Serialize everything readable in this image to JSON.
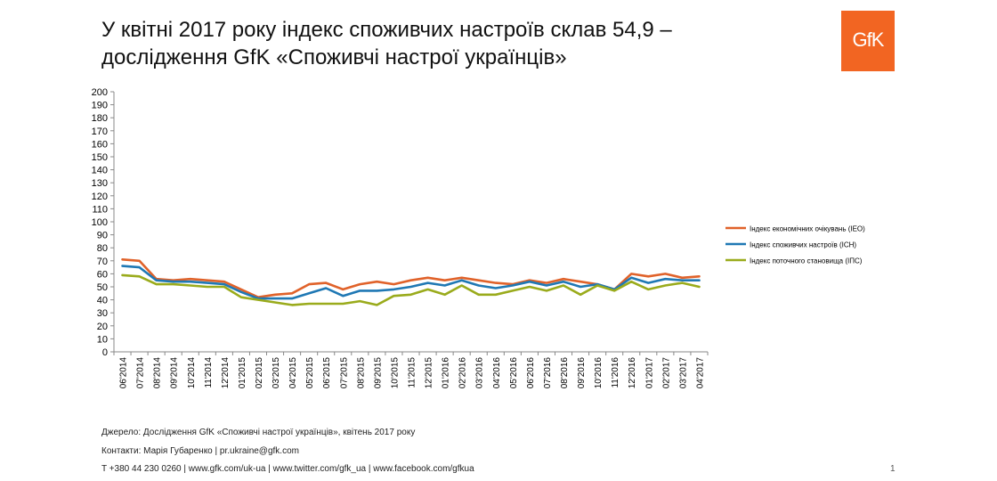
{
  "slide": {
    "title_line1": "У квітні 2017 року індекс споживчих настроїв склав 54,9 –",
    "title_line2": "дослідження GfK «Споживчі настрої українців»",
    "logo_text": "GfK",
    "source": "Джерело: Дослідження GfK «Споживчі настрої українців», квітень 2017 року",
    "contacts": "Контакти: Марія Губаренко | pr.ukraine@gfk.com",
    "links": "T +380 44 230 0260 | www.gfk.com/uk-ua | www.twitter.com/gfk_ua | www.facebook.com/gfkua",
    "page_number": "1"
  },
  "colors": {
    "logo_bg": "#f26522",
    "axis": "#888888",
    "text": "#000000"
  },
  "chart_data": {
    "type": "line",
    "title": "",
    "xlabel": "",
    "ylabel": "",
    "ylim": [
      0,
      200
    ],
    "ytick_step": 10,
    "grid": false,
    "legend_position": "right",
    "categories": [
      "06'2014",
      "07'2014",
      "08'2014",
      "09'2014",
      "10'2014",
      "11'2014",
      "12'2014",
      "01'2015",
      "02'2015",
      "03'2015",
      "04'2015",
      "05'2015",
      "06'2015",
      "07'2015",
      "08'2015",
      "09'2015",
      "10'2015",
      "11'2015",
      "12'2015",
      "01'2016",
      "02'2016",
      "03'2016",
      "04'2016",
      "05'2016",
      "06'2016",
      "07'2016",
      "08'2016",
      "09'2016",
      "10'2016",
      "11'2016",
      "12'2016",
      "01'2017",
      "02'2017",
      "03'2017",
      "04'2017"
    ],
    "series": [
      {
        "name": "Індекс економічних очікувань (IEO)",
        "color": "#e0622a",
        "values": [
          71,
          70,
          56,
          55,
          56,
          55,
          54,
          48,
          42,
          44,
          45,
          52,
          53,
          48,
          52,
          54,
          52,
          55,
          57,
          55,
          57,
          55,
          53,
          52,
          55,
          53,
          56,
          54,
          52,
          48,
          60,
          58,
          60,
          57,
          58
        ]
      },
      {
        "name": "Індекс споживчих настроїв (ІСН)",
        "color": "#1f78b4",
        "values": [
          66,
          65,
          55,
          54,
          54,
          53,
          52,
          46,
          41,
          41,
          41,
          45,
          49,
          43,
          47,
          47,
          48,
          50,
          53,
          51,
          55,
          51,
          49,
          51,
          54,
          51,
          54,
          50,
          52,
          48,
          57,
          53,
          56,
          55,
          55
        ]
      },
      {
        "name": "Індекс поточного становища (ІПС)",
        "color": "#9aab1c",
        "values": [
          59,
          58,
          52,
          52,
          51,
          50,
          50,
          42,
          40,
          38,
          36,
          37,
          37,
          37,
          39,
          36,
          43,
          44,
          48,
          44,
          51,
          44,
          44,
          47,
          50,
          47,
          51,
          44,
          51,
          47,
          54,
          48,
          51,
          53,
          50
        ]
      }
    ]
  }
}
